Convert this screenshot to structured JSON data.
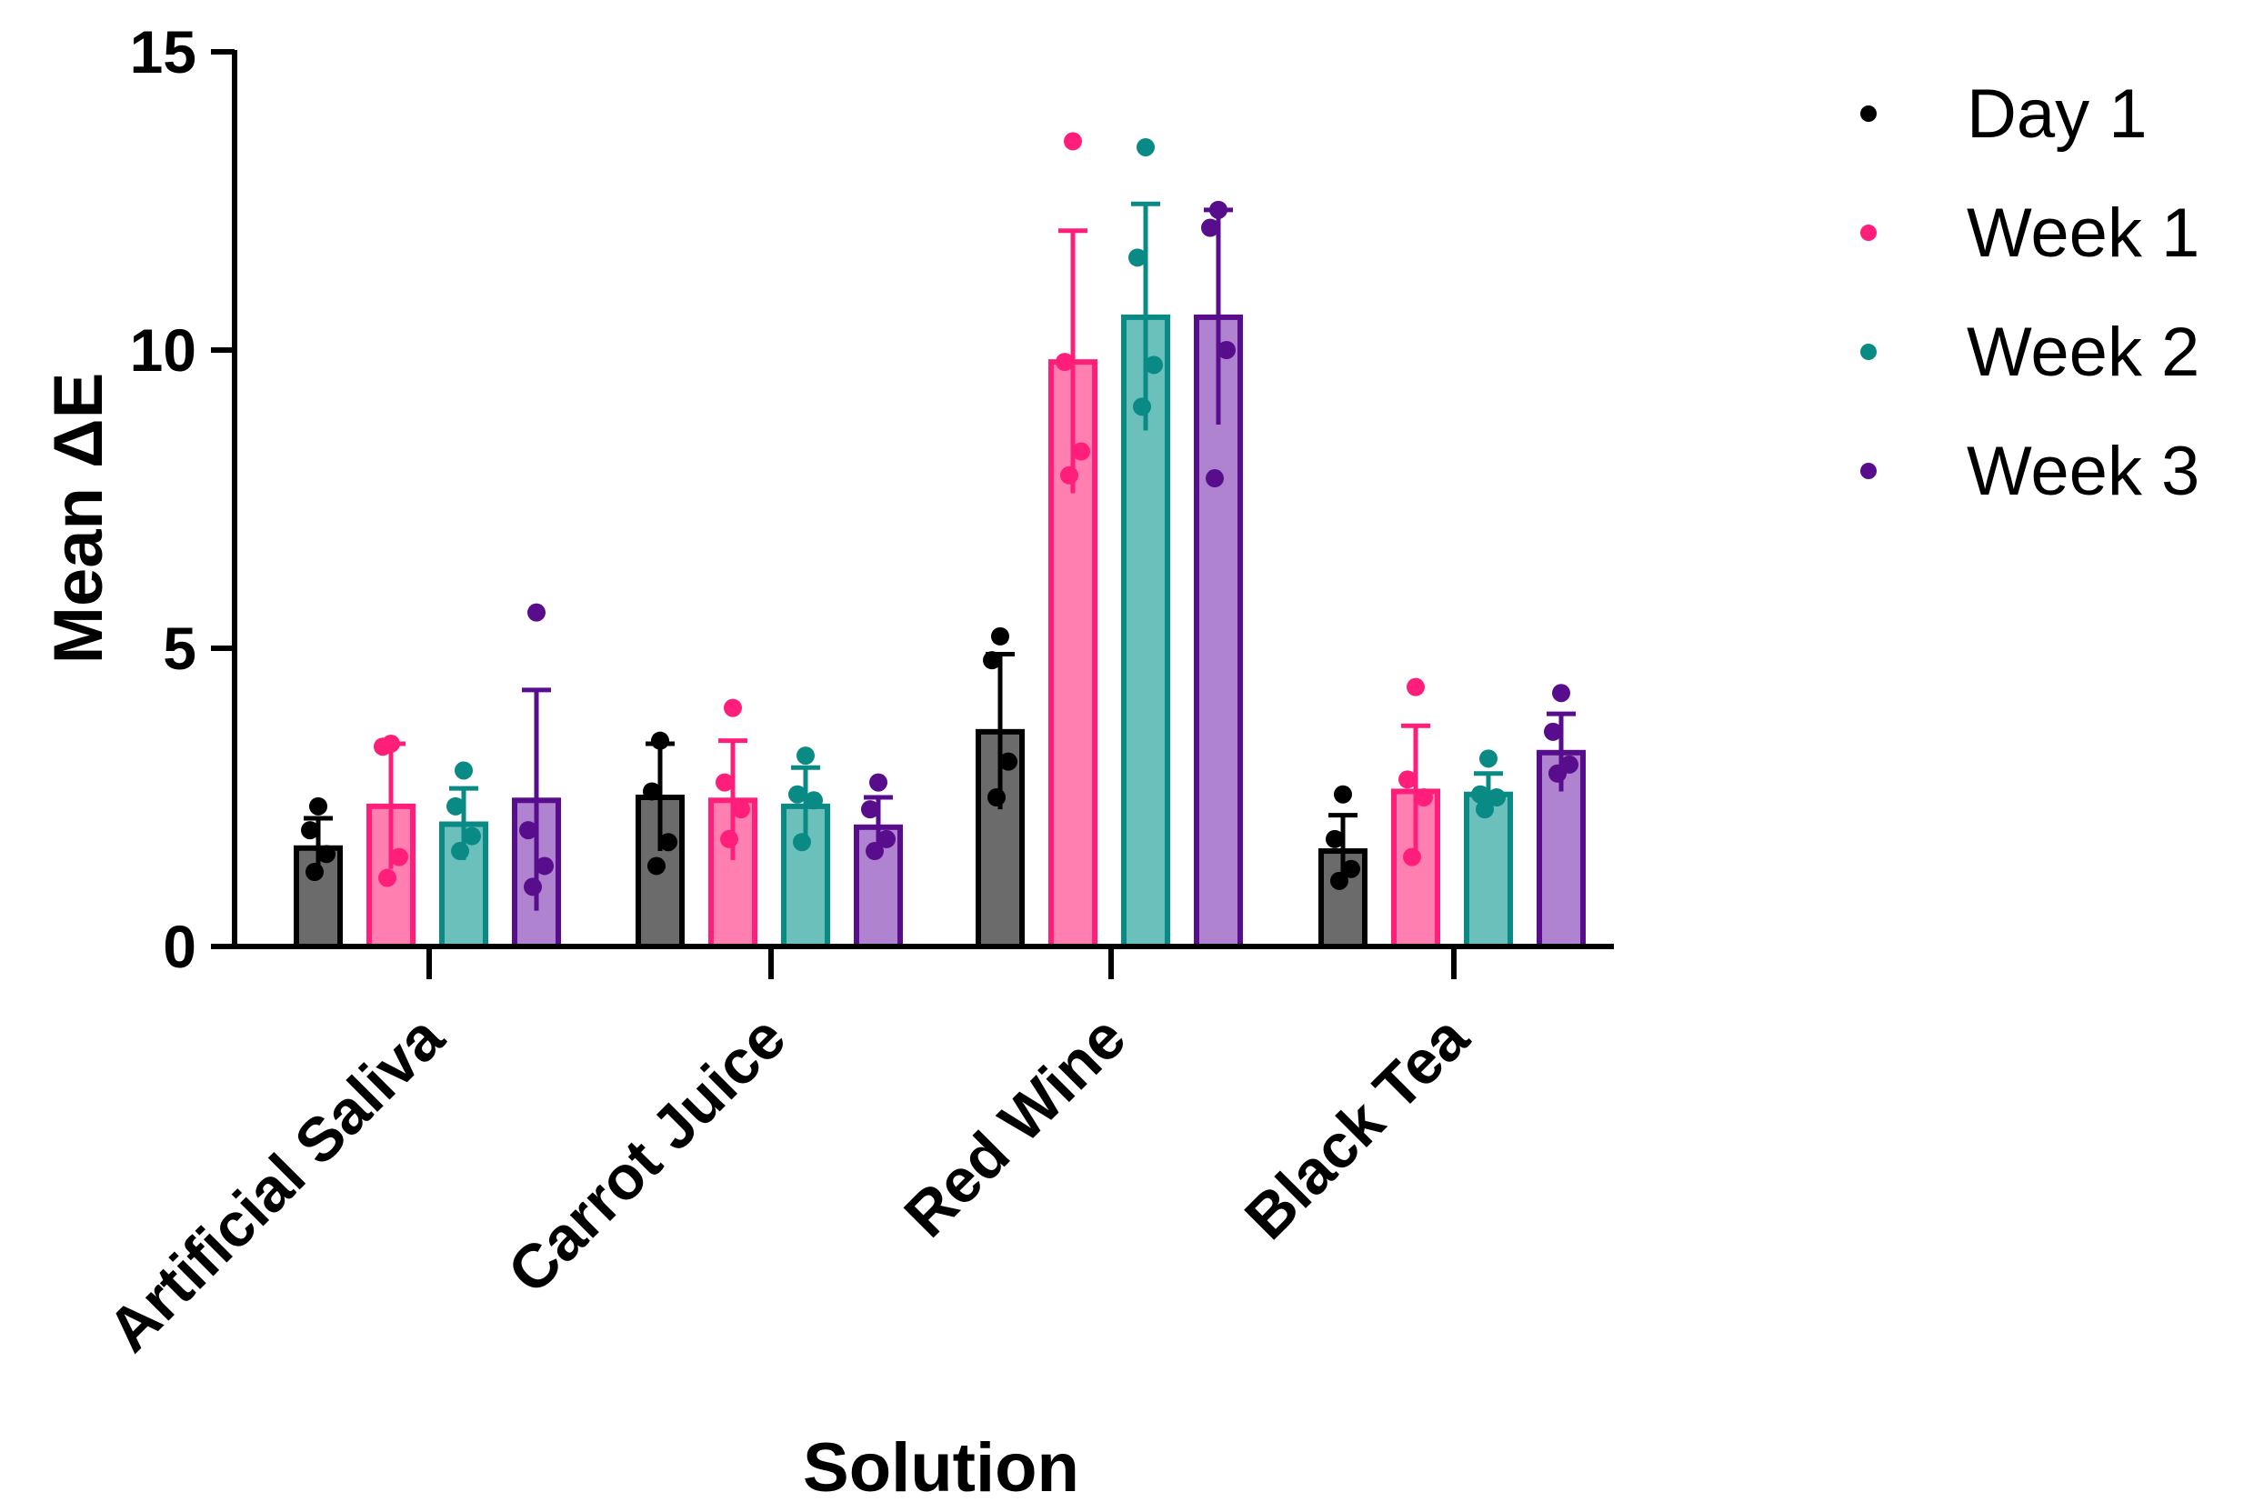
{
  "chart_data": {
    "type": "bar",
    "title": "",
    "xlabel": "Solution",
    "ylabel": "Mean ΔE",
    "ylim": [
      0,
      15
    ],
    "yticks": [
      0,
      5,
      10,
      15
    ],
    "categories": [
      "Artificial Saliva",
      "Carrot Juice",
      "Red Wine",
      "Black Tea"
    ],
    "legend_position": "top-right",
    "series": [
      {
        "name": "Day 1",
        "color": "#000000",
        "fill": "#6b6b6b",
        "values": [
          1.65,
          2.5,
          3.6,
          1.6
        ],
        "errors": [
          0.5,
          0.9,
          1.3,
          0.6
        ],
        "points": [
          [
            2.35,
            1.95,
            1.55,
            1.25
          ],
          [
            3.45,
            2.6,
            1.75,
            1.35
          ],
          [
            5.2,
            4.8,
            3.1,
            2.5
          ],
          [
            2.55,
            1.8,
            1.3,
            1.1
          ]
        ]
      },
      {
        "name": "Week 1",
        "color": "#ff1f7a",
        "fill": "#ff80b0",
        "values": [
          2.35,
          2.45,
          9.8,
          2.6
        ],
        "errors": [
          1.05,
          1.0,
          2.2,
          1.1
        ],
        "points": [
          [
            3.4,
            3.35,
            1.5,
            1.15
          ],
          [
            4.0,
            2.75,
            2.3,
            1.8
          ],
          [
            13.5,
            9.8,
            8.3,
            7.9
          ],
          [
            4.35,
            2.8,
            2.5,
            1.5
          ]
        ]
      },
      {
        "name": "Week 2",
        "color": "#0a8a84",
        "fill": "#6cc0bc",
        "values": [
          2.05,
          2.35,
          10.55,
          2.55
        ],
        "errors": [
          0.6,
          0.65,
          1.9,
          0.35
        ],
        "points": [
          [
            2.95,
            2.35,
            1.85,
            1.6
          ],
          [
            3.2,
            2.55,
            2.45,
            1.75
          ],
          [
            13.4,
            11.55,
            9.75,
            9.05
          ],
          [
            3.15,
            2.55,
            2.5,
            2.3
          ]
        ]
      },
      {
        "name": "Week 3",
        "color": "#570d8c",
        "fill": "#b083d0",
        "values": [
          2.45,
          2.0,
          10.55,
          3.25
        ],
        "errors": [
          1.85,
          0.5,
          1.8,
          0.65
        ],
        "points": [
          [
            5.6,
            1.95,
            1.35,
            1.0
          ],
          [
            2.75,
            2.3,
            1.8,
            1.6
          ],
          [
            12.35,
            12.05,
            10.0,
            7.85
          ],
          [
            4.25,
            3.6,
            3.05,
            2.9
          ]
        ]
      }
    ]
  }
}
